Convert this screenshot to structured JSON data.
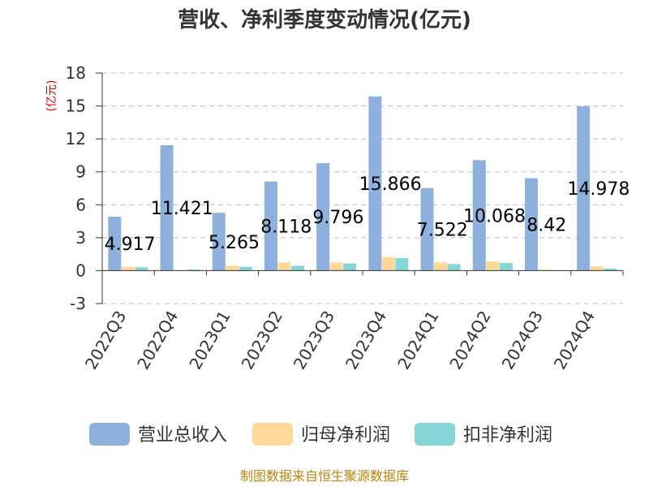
{
  "chart_data": {
    "type": "bar",
    "title": "营收、净利季度变动情况(亿元)",
    "unit": "(亿元)",
    "categories": [
      "2022Q3",
      "2022Q4",
      "2023Q1",
      "2023Q2",
      "2023Q3",
      "2023Q4",
      "2024Q1",
      "2024Q2",
      "2024Q3",
      "2024Q4"
    ],
    "series": [
      {
        "name": "营业总收入",
        "color": "#8eb0dc",
        "values": [
          4.917,
          11.421,
          5.265,
          8.118,
          9.796,
          15.866,
          7.522,
          10.068,
          8.42,
          14.978
        ]
      },
      {
        "name": "归母净利润",
        "color": "#fdd898",
        "values": [
          0.35,
          0.05,
          0.45,
          0.75,
          0.75,
          1.25,
          0.75,
          0.85,
          0.1,
          0.4
        ]
      },
      {
        "name": "扣非净利润",
        "color": "#84d5d6",
        "values": [
          0.3,
          0.1,
          0.35,
          0.45,
          0.65,
          1.15,
          0.6,
          0.7,
          0.05,
          0.2
        ]
      }
    ],
    "data_labels": [
      "4.917",
      "11.421",
      "5.265",
      "8.118",
      "9.796",
      "15.866",
      "7.522",
      "10.068",
      "8.42",
      "14.978"
    ],
    "y_ticks": [
      "18",
      "15",
      "12",
      "9",
      "6",
      "3",
      "0",
      "-3"
    ],
    "ylim": [
      -3,
      18
    ],
    "grid": true,
    "legend_position": "bottom"
  },
  "source": "制图数据来自恒生聚源数据库"
}
